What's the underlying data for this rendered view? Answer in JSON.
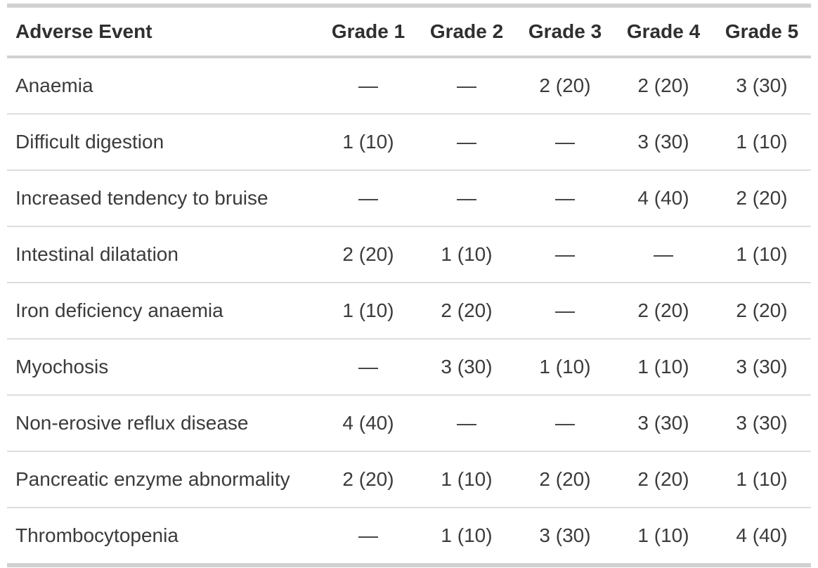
{
  "chart_data": {
    "type": "table",
    "columns": [
      "Adverse Event",
      "Grade 1",
      "Grade 2",
      "Grade 3",
      "Grade 4",
      "Grade 5"
    ],
    "rows": [
      {
        "event": "Anaemia",
        "values": [
          "—",
          "—",
          "2 (20)",
          "2 (20)",
          "3 (30)"
        ]
      },
      {
        "event": "Difficult digestion",
        "values": [
          "1 (10)",
          "—",
          "—",
          "3 (30)",
          "1 (10)"
        ]
      },
      {
        "event": "Increased tendency to bruise",
        "values": [
          "—",
          "—",
          "—",
          "4 (40)",
          "2 (20)"
        ]
      },
      {
        "event": "Intestinal dilatation",
        "values": [
          "2 (20)",
          "1 (10)",
          "—",
          "—",
          "1 (10)"
        ]
      },
      {
        "event": "Iron deficiency anaemia",
        "values": [
          "1 (10)",
          "2 (20)",
          "—",
          "2 (20)",
          "2 (20)"
        ]
      },
      {
        "event": "Myochosis",
        "values": [
          "—",
          "3 (30)",
          "1 (10)",
          "1 (10)",
          "3 (30)"
        ]
      },
      {
        "event": "Non-erosive reflux disease",
        "values": [
          "4 (40)",
          "—",
          "—",
          "3 (30)",
          "3 (30)"
        ]
      },
      {
        "event": "Pancreatic enzyme abnormality",
        "values": [
          "2 (20)",
          "1 (10)",
          "2 (20)",
          "2 (20)",
          "1 (10)"
        ]
      },
      {
        "event": "Thrombocytopenia",
        "values": [
          "—",
          "1 (10)",
          "3 (30)",
          "1 (10)",
          "4 (40)"
        ]
      }
    ]
  },
  "styles": {
    "background": "#ffffff",
    "text_color": "#3b3b3b",
    "header_text_color": "#2f2f2f",
    "border_heavy": "#d1d1d1",
    "border_light": "#dedede"
  }
}
